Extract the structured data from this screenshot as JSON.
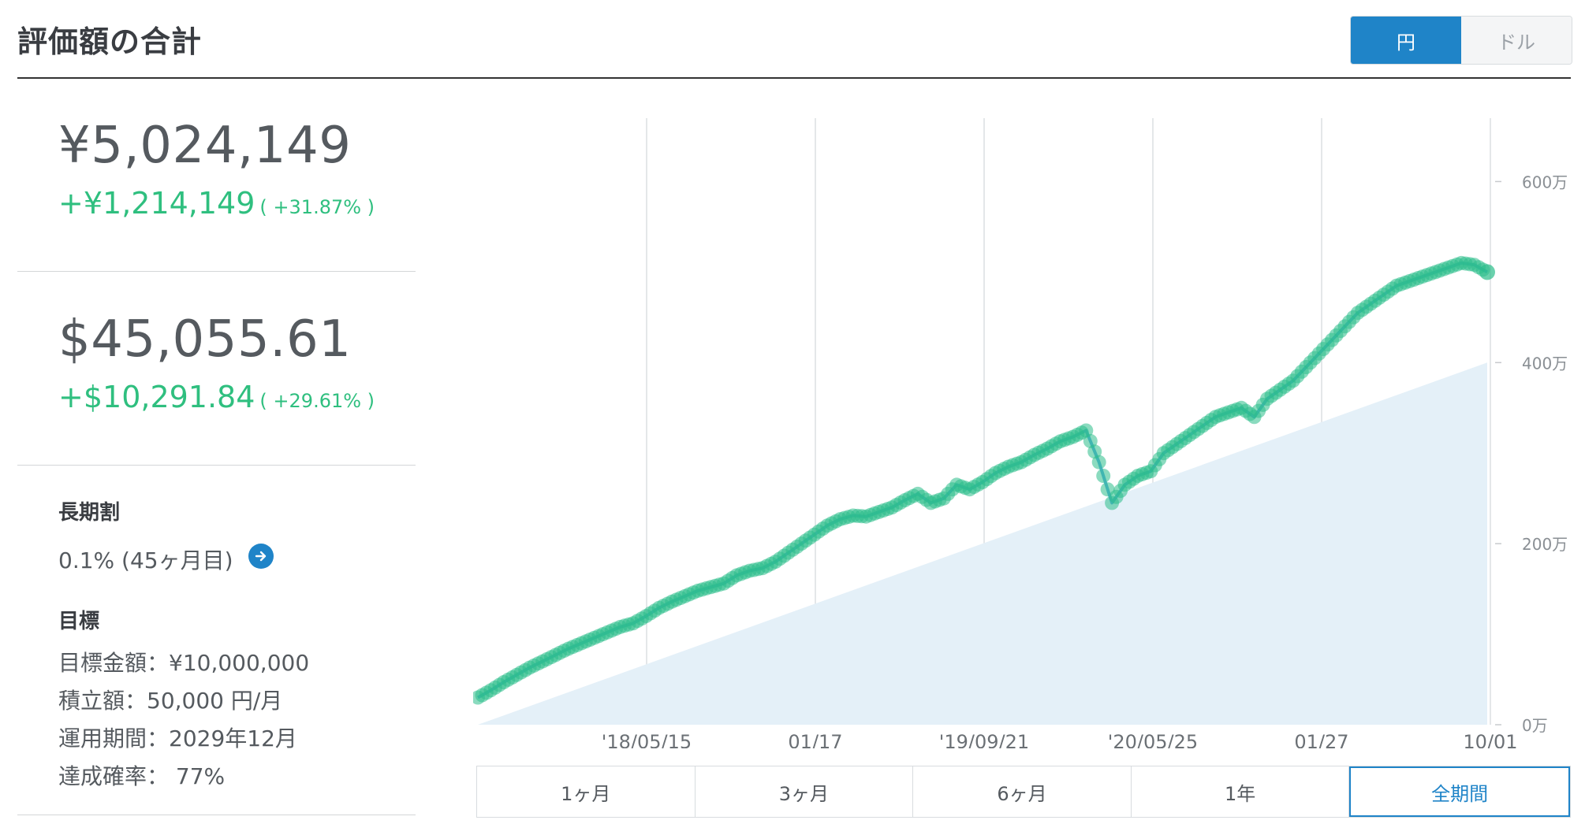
{
  "header": {
    "title": "評価額の合計",
    "currency_yen": "円",
    "currency_dollar": "ドル"
  },
  "summary": {
    "yen_total": "¥5,024,149",
    "yen_gain": "+¥1,214,149",
    "yen_gain_pct": "( +31.87% )",
    "usd_total": "$45,055.61",
    "usd_gain": "+$10,291.84",
    "usd_gain_pct": "( +29.61% )"
  },
  "long_term_discount": {
    "heading": "長期割",
    "value": "0.1% (45ヶ月目)"
  },
  "goal": {
    "heading": "目標",
    "target_amount": "目標金額：¥10,000,000",
    "monthly_deposit": "積立額：50,000 円/月",
    "period": "運用期間：2029年12月",
    "probability": "達成確率： 77%"
  },
  "periods": [
    "1ヶ月",
    "3ヶ月",
    "6ヶ月",
    "1年",
    "全期間"
  ],
  "active_period": "全期間",
  "colors": {
    "accent": "#1f84c8",
    "gain": "#2fbf7f",
    "dots": "#2bbd8a",
    "line": "#5aaee0",
    "area": "#e4f0f8"
  },
  "chart_data": {
    "type": "area",
    "x_tick_labels": [
      "'18/05/15",
      "01/17",
      "'19/09/21",
      "'20/05/25",
      "01/27",
      "10/01"
    ],
    "y_tick_labels": [
      "0万",
      "200万",
      "400万",
      "600万"
    ],
    "ylim": [
      0,
      6700000
    ],
    "series": [
      {
        "values": [
          300000,
          380000,
          470000,
          550000,
          630000,
          700000,
          770000,
          840000,
          900000,
          960000,
          1020000,
          1080000,
          1120000,
          1200000,
          1290000,
          1360000,
          1420000,
          1480000,
          1520000,
          1560000,
          1650000,
          1700000,
          1730000,
          1800000,
          1900000,
          2000000,
          2100000,
          2200000,
          2270000,
          2310000,
          2300000,
          2350000,
          2400000,
          2480000,
          2550000,
          2450000,
          2500000,
          2650000,
          2600000,
          2680000,
          2780000,
          2850000,
          2900000,
          2980000,
          3050000,
          3130000,
          3180000,
          3250000,
          2900000,
          2450000,
          2650000,
          2750000,
          2800000,
          3000000,
          3100000,
          3200000,
          3300000,
          3400000,
          3450000,
          3500000,
          3400000,
          3600000,
          3700000,
          3800000,
          3950000,
          4100000,
          4250000,
          4400000,
          4550000,
          4650000,
          4750000,
          4850000,
          4900000,
          4950000,
          5000000,
          5050000,
          5100000,
          5080000,
          5000000
        ]
      },
      {
        "values": [
          0,
          4000000
        ]
      }
    ],
    "grid": true,
    "legend": "none"
  }
}
